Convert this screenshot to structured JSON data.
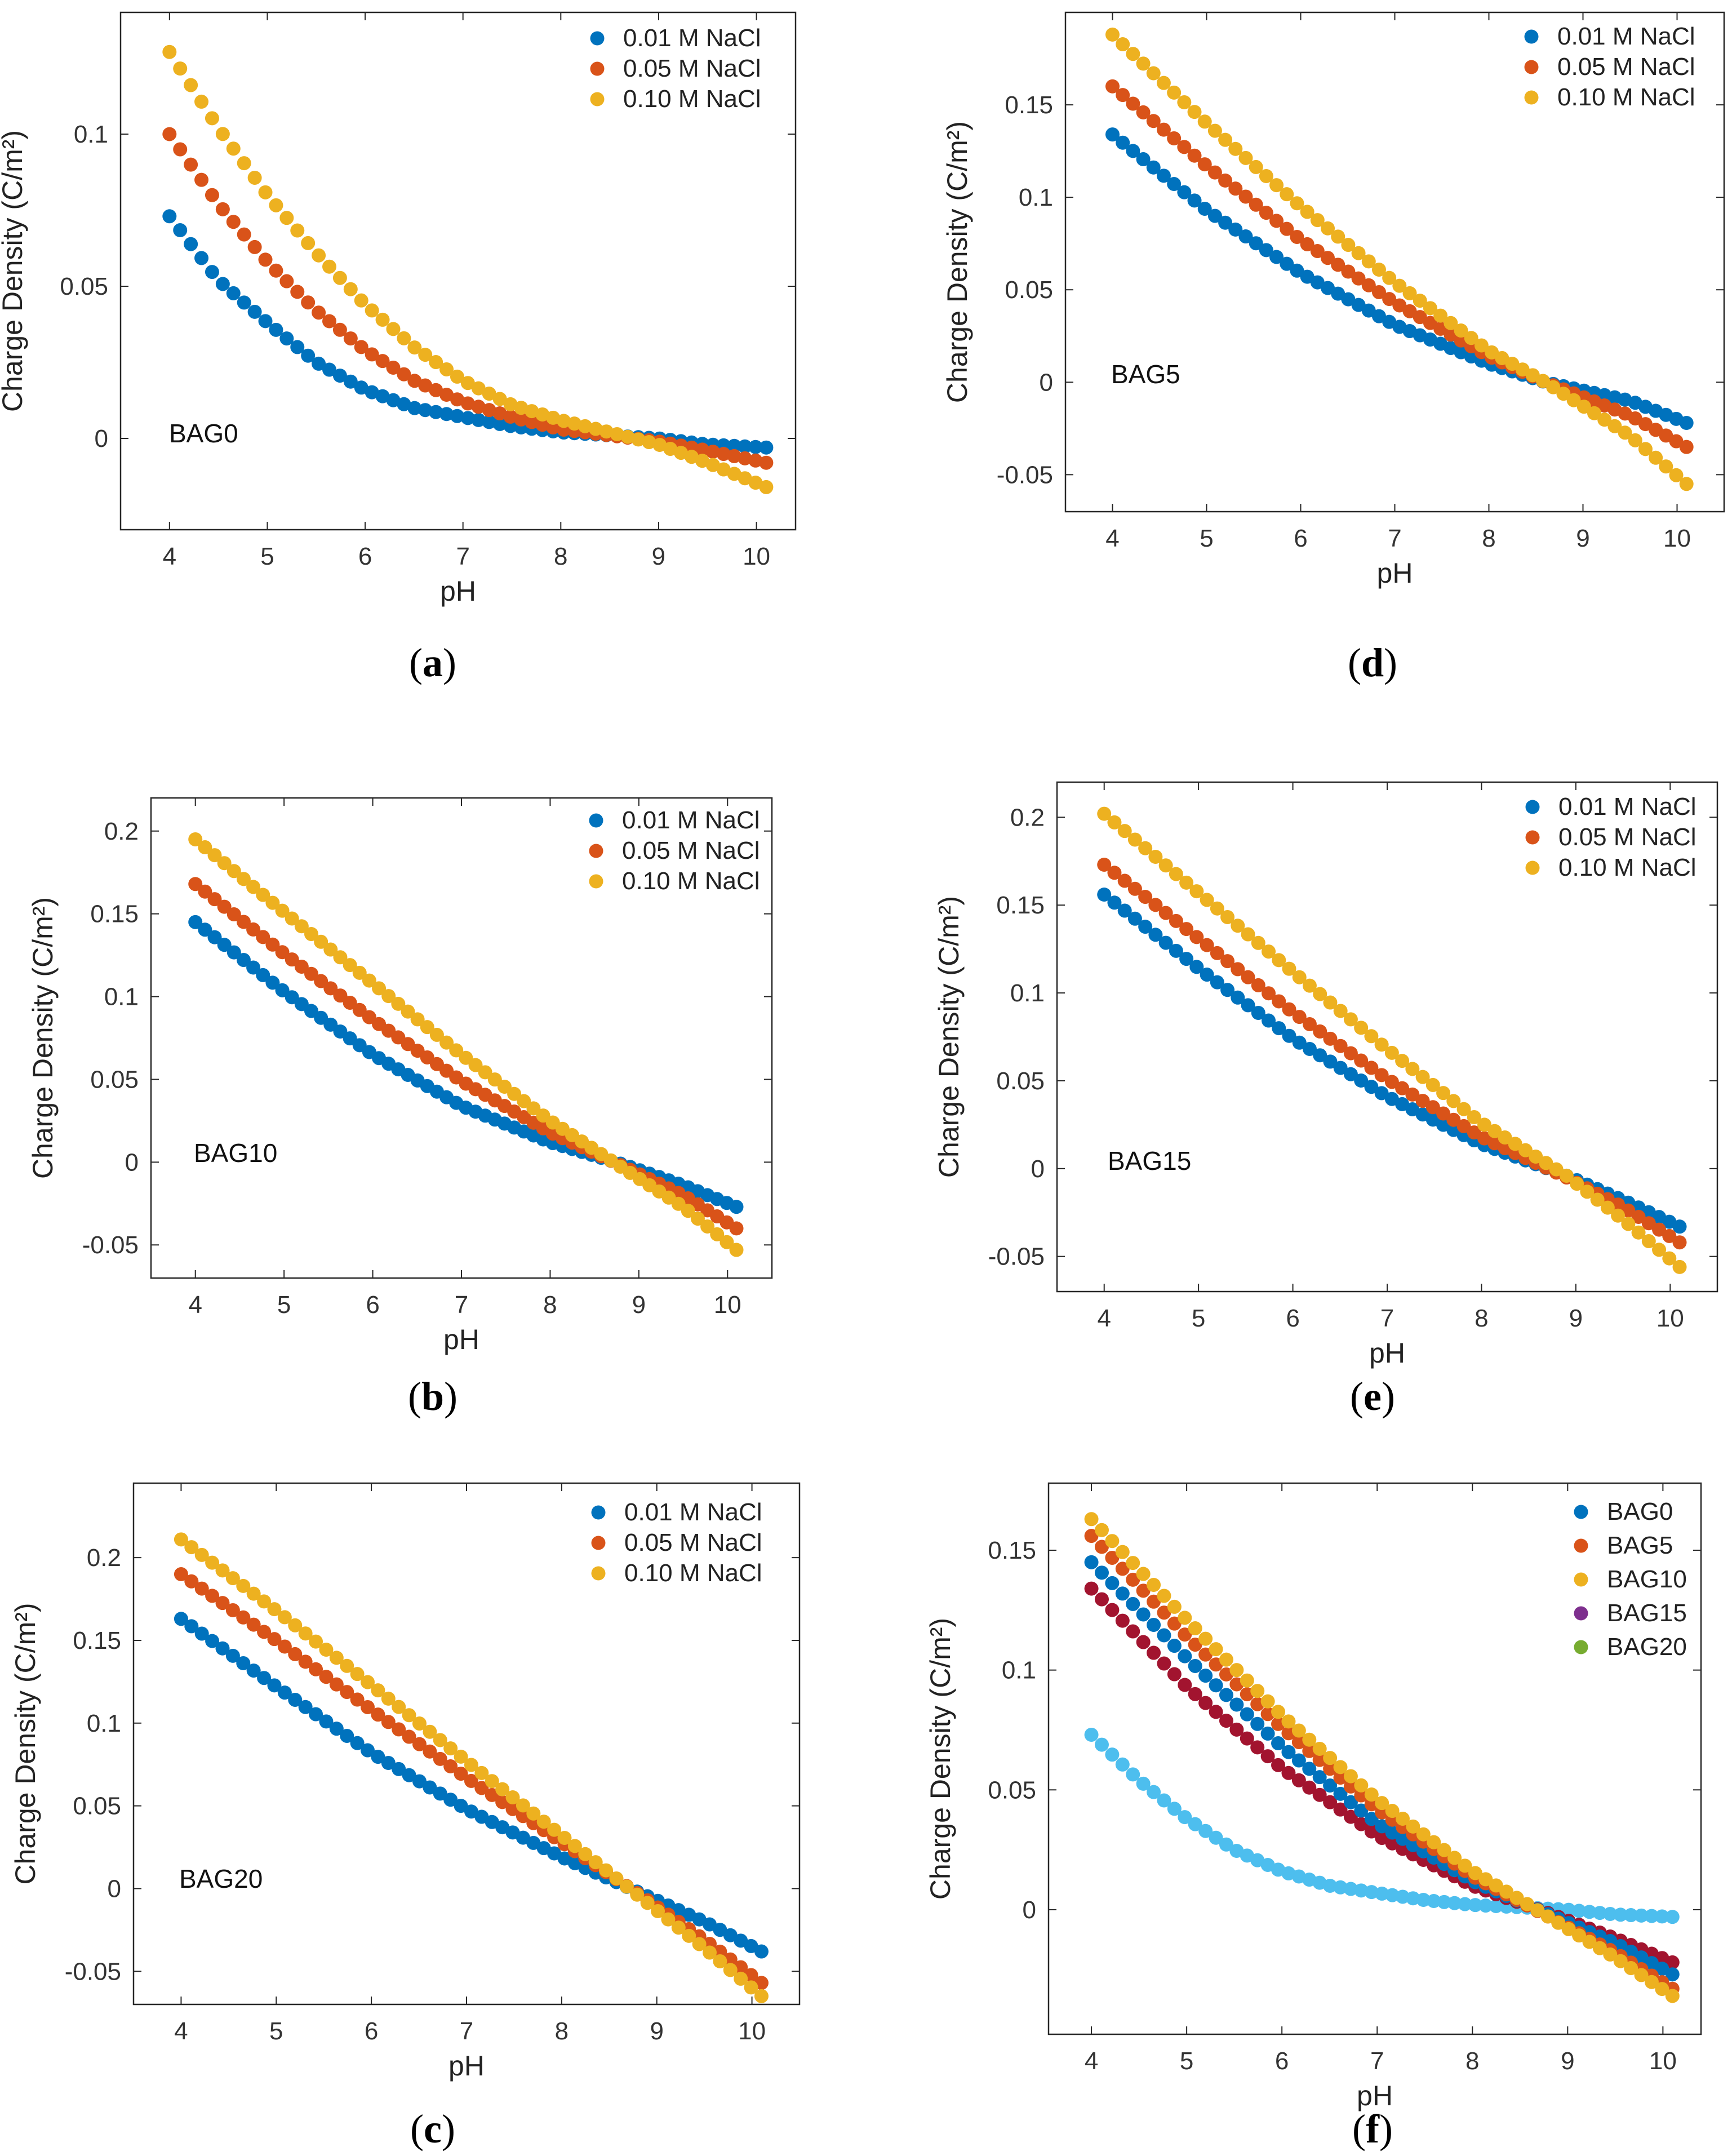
{
  "figure": {
    "colors": {
      "blue": "#0072BD",
      "red": "#D95319",
      "yellow": "#EDB120",
      "purple": "#7E2F8E",
      "green": "#77AC30",
      "dark_red": "#A2142F",
      "light_blue": "#4DBEEE"
    }
  },
  "chart_data": [
    {
      "panel": "a",
      "caption": "a",
      "type": "scatter",
      "xlabel": "pH",
      "ylabel": "Charge Density (C/m²)",
      "xlim": [
        3.5,
        10.4
      ],
      "ylim": [
        -0.03,
        0.14
      ],
      "xticks": [
        4,
        5,
        6,
        7,
        8,
        9,
        10
      ],
      "yticks": [
        0,
        0.05,
        0.1
      ],
      "ytick_labels": [
        "0",
        "0.05",
        "0.1"
      ],
      "annotation": "BAG0",
      "legend_position": "top-right",
      "x_range": [
        4.0,
        10.1
      ],
      "n_points": 57,
      "series": [
        {
          "name": "0.01 M NaCl",
          "color": "#0072BD",
          "x": [
            4,
            4.5,
            5,
            5.5,
            6,
            6.5,
            7,
            7.5,
            8,
            8.5,
            9,
            9.5,
            10.1
          ],
          "y": [
            0.073,
            0.052,
            0.038,
            0.025,
            0.016,
            0.01,
            0.007,
            0.004,
            0.002,
            0.001,
            -0.0,
            -0.002,
            -0.003
          ]
        },
        {
          "name": "0.05 M NaCl",
          "color": "#D95319",
          "x": [
            4,
            4.5,
            5,
            5.5,
            6,
            6.5,
            7,
            7.5,
            8,
            8.5,
            9,
            9.5,
            10.1
          ],
          "y": [
            0.1,
            0.077,
            0.058,
            0.042,
            0.029,
            0.019,
            0.012,
            0.007,
            0.003,
            0.001,
            -0.001,
            -0.004,
            -0.008
          ]
        },
        {
          "name": "0.10 M NaCl",
          "color": "#EDB120",
          "x": [
            4,
            4.5,
            5,
            5.5,
            6,
            6.5,
            7,
            7.5,
            8,
            8.5,
            9,
            9.5,
            10.1
          ],
          "y": [
            0.127,
            0.102,
            0.08,
            0.061,
            0.044,
            0.03,
            0.019,
            0.011,
            0.006,
            0.002,
            -0.002,
            -0.008,
            -0.016
          ]
        }
      ]
    },
    {
      "panel": "b",
      "caption": "b",
      "type": "scatter",
      "xlabel": "pH",
      "ylabel": "Charge Density (C/m²)",
      "xlim": [
        3.5,
        10.5
      ],
      "ylim": [
        -0.07,
        0.22
      ],
      "xticks": [
        4,
        5,
        6,
        7,
        8,
        9,
        10
      ],
      "yticks": [
        -0.05,
        0,
        0.05,
        0.1,
        0.15,
        0.2
      ],
      "ytick_labels": [
        "-0.05",
        "0",
        "0.05",
        "0.1",
        "0.15",
        "0.2"
      ],
      "annotation": "BAG10",
      "legend_position": "top-right",
      "x_range": [
        4.0,
        10.1
      ],
      "n_points": 57,
      "series": [
        {
          "name": "0.01 M NaCl",
          "color": "#0072BD",
          "x": [
            4,
            5,
            6,
            7,
            8,
            8.8,
            9.5,
            10.1
          ],
          "y": [
            0.145,
            0.103,
            0.065,
            0.034,
            0.012,
            -0.001,
            -0.014,
            -0.027
          ]
        },
        {
          "name": "0.05 M NaCl",
          "color": "#D95319",
          "x": [
            4,
            5,
            6,
            7,
            8,
            8.8,
            9.5,
            10.1
          ],
          "y": [
            0.168,
            0.126,
            0.086,
            0.049,
            0.018,
            -0.002,
            -0.02,
            -0.04
          ]
        },
        {
          "name": "0.10 M NaCl",
          "color": "#EDB120",
          "x": [
            4,
            5,
            6,
            7,
            8,
            8.8,
            9.5,
            10.1
          ],
          "y": [
            0.195,
            0.151,
            0.108,
            0.065,
            0.025,
            -0.003,
            -0.027,
            -0.053
          ]
        }
      ]
    },
    {
      "panel": "c",
      "caption": "c",
      "type": "scatter",
      "xlabel": "pH",
      "ylabel": "Charge Density (C/m²)",
      "xlim": [
        3.5,
        10.5
      ],
      "ylim": [
        -0.07,
        0.245
      ],
      "xticks": [
        4,
        5,
        6,
        7,
        8,
        9,
        10
      ],
      "yticks": [
        -0.05,
        0,
        0.05,
        0.1,
        0.15,
        0.2
      ],
      "ytick_labels": [
        "-0.05",
        "0",
        "0.05",
        "0.1",
        "0.15",
        "0.2"
      ],
      "annotation": "BAG20",
      "legend_position": "top-right",
      "x_range": [
        4.0,
        10.1
      ],
      "n_points": 57,
      "series": [
        {
          "name": "0.01 M NaCl",
          "color": "#0072BD",
          "x": [
            4,
            5,
            6,
            7,
            8,
            8.8,
            9.5,
            10.1
          ],
          "y": [
            0.163,
            0.122,
            0.082,
            0.048,
            0.019,
            -0.002,
            -0.02,
            -0.038
          ]
        },
        {
          "name": "0.05 M NaCl",
          "color": "#D95319",
          "x": [
            4,
            5,
            6,
            7,
            8,
            8.8,
            9.5,
            10.1
          ],
          "y": [
            0.19,
            0.15,
            0.108,
            0.067,
            0.028,
            -0.003,
            -0.031,
            -0.057
          ]
        },
        {
          "name": "0.10 M NaCl",
          "color": "#EDB120",
          "x": [
            4,
            5,
            6,
            7,
            8,
            8.8,
            9.5,
            10.1
          ],
          "y": [
            0.211,
            0.168,
            0.123,
            0.077,
            0.032,
            -0.004,
            -0.036,
            -0.065
          ]
        }
      ]
    },
    {
      "panel": "d",
      "caption": "d",
      "type": "scatter",
      "xlabel": "pH",
      "ylabel": "Charge Density (C/m²)",
      "xlim": [
        3.5,
        10.5
      ],
      "ylim": [
        -0.07,
        0.2
      ],
      "xticks": [
        4,
        5,
        6,
        7,
        8,
        9,
        10
      ],
      "yticks": [
        -0.05,
        0,
        0.05,
        0.1,
        0.15
      ],
      "ytick_labels": [
        "-0.05",
        "0",
        "0.05",
        "0.1",
        "0.15"
      ],
      "annotation": "BAG5",
      "legend_position": "top-right",
      "x_range": [
        4.0,
        10.1
      ],
      "n_points": 57,
      "series": [
        {
          "name": "0.01 M NaCl",
          "color": "#0072BD",
          "x": [
            4,
            5,
            6,
            7,
            8,
            8.6,
            9.5,
            10.1
          ],
          "y": [
            0.134,
            0.093,
            0.059,
            0.031,
            0.01,
            -0.0,
            -0.01,
            -0.022
          ]
        },
        {
          "name": "0.05 M NaCl",
          "color": "#D95319",
          "x": [
            4,
            5,
            6,
            7,
            8,
            8.6,
            9.5,
            10.1
          ],
          "y": [
            0.16,
            0.117,
            0.077,
            0.043,
            0.014,
            -0.0,
            -0.018,
            -0.035
          ]
        },
        {
          "name": "0.10 M NaCl",
          "color": "#EDB120",
          "x": [
            4,
            5,
            6,
            7,
            8,
            8.6,
            9.5,
            10.1
          ],
          "y": [
            0.188,
            0.14,
            0.095,
            0.054,
            0.017,
            -0.0,
            -0.029,
            -0.055
          ]
        }
      ]
    },
    {
      "panel": "e",
      "caption": "e",
      "type": "scatter",
      "xlabel": "pH",
      "ylabel": "Charge Density (C/m²)",
      "xlim": [
        3.5,
        10.5
      ],
      "ylim": [
        -0.07,
        0.22
      ],
      "xticks": [
        4,
        5,
        6,
        7,
        8,
        9,
        10
      ],
      "yticks": [
        -0.05,
        0,
        0.05,
        0.1,
        0.15,
        0.2
      ],
      "ytick_labels": [
        "-0.05",
        "0",
        "0.05",
        "0.1",
        "0.15",
        "0.2"
      ],
      "annotation": "BAG15",
      "legend_position": "top-right",
      "x_range": [
        4.0,
        10.1
      ],
      "n_points": 57,
      "series": [
        {
          "name": "0.01 M NaCl",
          "color": "#0072BD",
          "x": [
            4,
            5,
            6,
            7,
            8,
            8.9,
            9.5,
            10.1
          ],
          "y": [
            0.156,
            0.114,
            0.074,
            0.041,
            0.014,
            -0.004,
            -0.018,
            -0.033
          ]
        },
        {
          "name": "0.05 M NaCl",
          "color": "#D95319",
          "x": [
            4,
            5,
            6,
            7,
            8,
            8.9,
            9.5,
            10.1
          ],
          "y": [
            0.173,
            0.131,
            0.089,
            0.051,
            0.018,
            -0.005,
            -0.022,
            -0.042
          ]
        },
        {
          "name": "0.10 M NaCl",
          "color": "#EDB120",
          "x": [
            4,
            5,
            6,
            7,
            8,
            8.9,
            9.5,
            10.1
          ],
          "y": [
            0.202,
            0.157,
            0.112,
            0.068,
            0.026,
            -0.004,
            -0.029,
            -0.056
          ]
        }
      ]
    },
    {
      "panel": "f",
      "caption": "f",
      "type": "scatter",
      "xlabel": "pH",
      "ylabel": "Charge Density (C/m²)",
      "xlim": [
        3.55,
        10.4
      ],
      "ylim": [
        -0.052,
        0.178
      ],
      "xticks": [
        4,
        5,
        6,
        7,
        8,
        9,
        10
      ],
      "yticks": [
        0,
        0.05,
        0.1,
        0.15
      ],
      "ytick_labels": [
        "0",
        "0.05",
        "0.1",
        "0.15"
      ],
      "annotation": "",
      "legend_position": "top-right",
      "x_range": [
        4.0,
        10.1
      ],
      "n_points": 57,
      "legend": [
        {
          "name": "BAG0",
          "color": "#0072BD"
        },
        {
          "name": "BAG5",
          "color": "#D95319"
        },
        {
          "name": "BAG10",
          "color": "#EDB120"
        },
        {
          "name": "BAG15",
          "color": "#7E2F8E"
        },
        {
          "name": "BAG20",
          "color": "#77AC30"
        }
      ],
      "series": [
        {
          "name": "BAG0 (as plotted)",
          "color": "#4DBEEE",
          "x": [
            4,
            4.5,
            5,
            5.5,
            6,
            6.5,
            7,
            7.5,
            8,
            8.5,
            9,
            9.5,
            10.1
          ],
          "y": [
            0.073,
            0.054,
            0.038,
            0.025,
            0.016,
            0.01,
            0.007,
            0.004,
            0.002,
            0.001,
            -0.0,
            -0.002,
            -0.003
          ]
        },
        {
          "name": "BAG5 (as plotted)",
          "color": "#A2142F",
          "x": [
            4,
            5,
            6,
            7,
            8,
            8.7,
            9.5,
            10.1
          ],
          "y": [
            0.134,
            0.093,
            0.059,
            0.031,
            0.01,
            -0.0,
            -0.012,
            -0.022
          ]
        },
        {
          "name": "BAG10 (as plotted)",
          "color": "#0072BD",
          "x": [
            4,
            5,
            6,
            7,
            8,
            8.8,
            9.5,
            10.1
          ],
          "y": [
            0.145,
            0.105,
            0.068,
            0.036,
            0.012,
            -0.002,
            -0.014,
            -0.027
          ]
        },
        {
          "name": "BAG15 (as plotted)",
          "color": "#D95319",
          "x": [
            4,
            5,
            6,
            7,
            8,
            8.8,
            9.5,
            10.1
          ],
          "y": [
            0.156,
            0.114,
            0.076,
            0.042,
            0.014,
            -0.003,
            -0.018,
            -0.033
          ]
        },
        {
          "name": "BAG20 (as plotted)",
          "color": "#EDB120",
          "x": [
            4,
            5,
            6,
            7,
            8,
            8.8,
            9.5,
            10.1
          ],
          "y": [
            0.163,
            0.121,
            0.081,
            0.046,
            0.016,
            -0.003,
            -0.02,
            -0.036
          ]
        }
      ]
    }
  ]
}
